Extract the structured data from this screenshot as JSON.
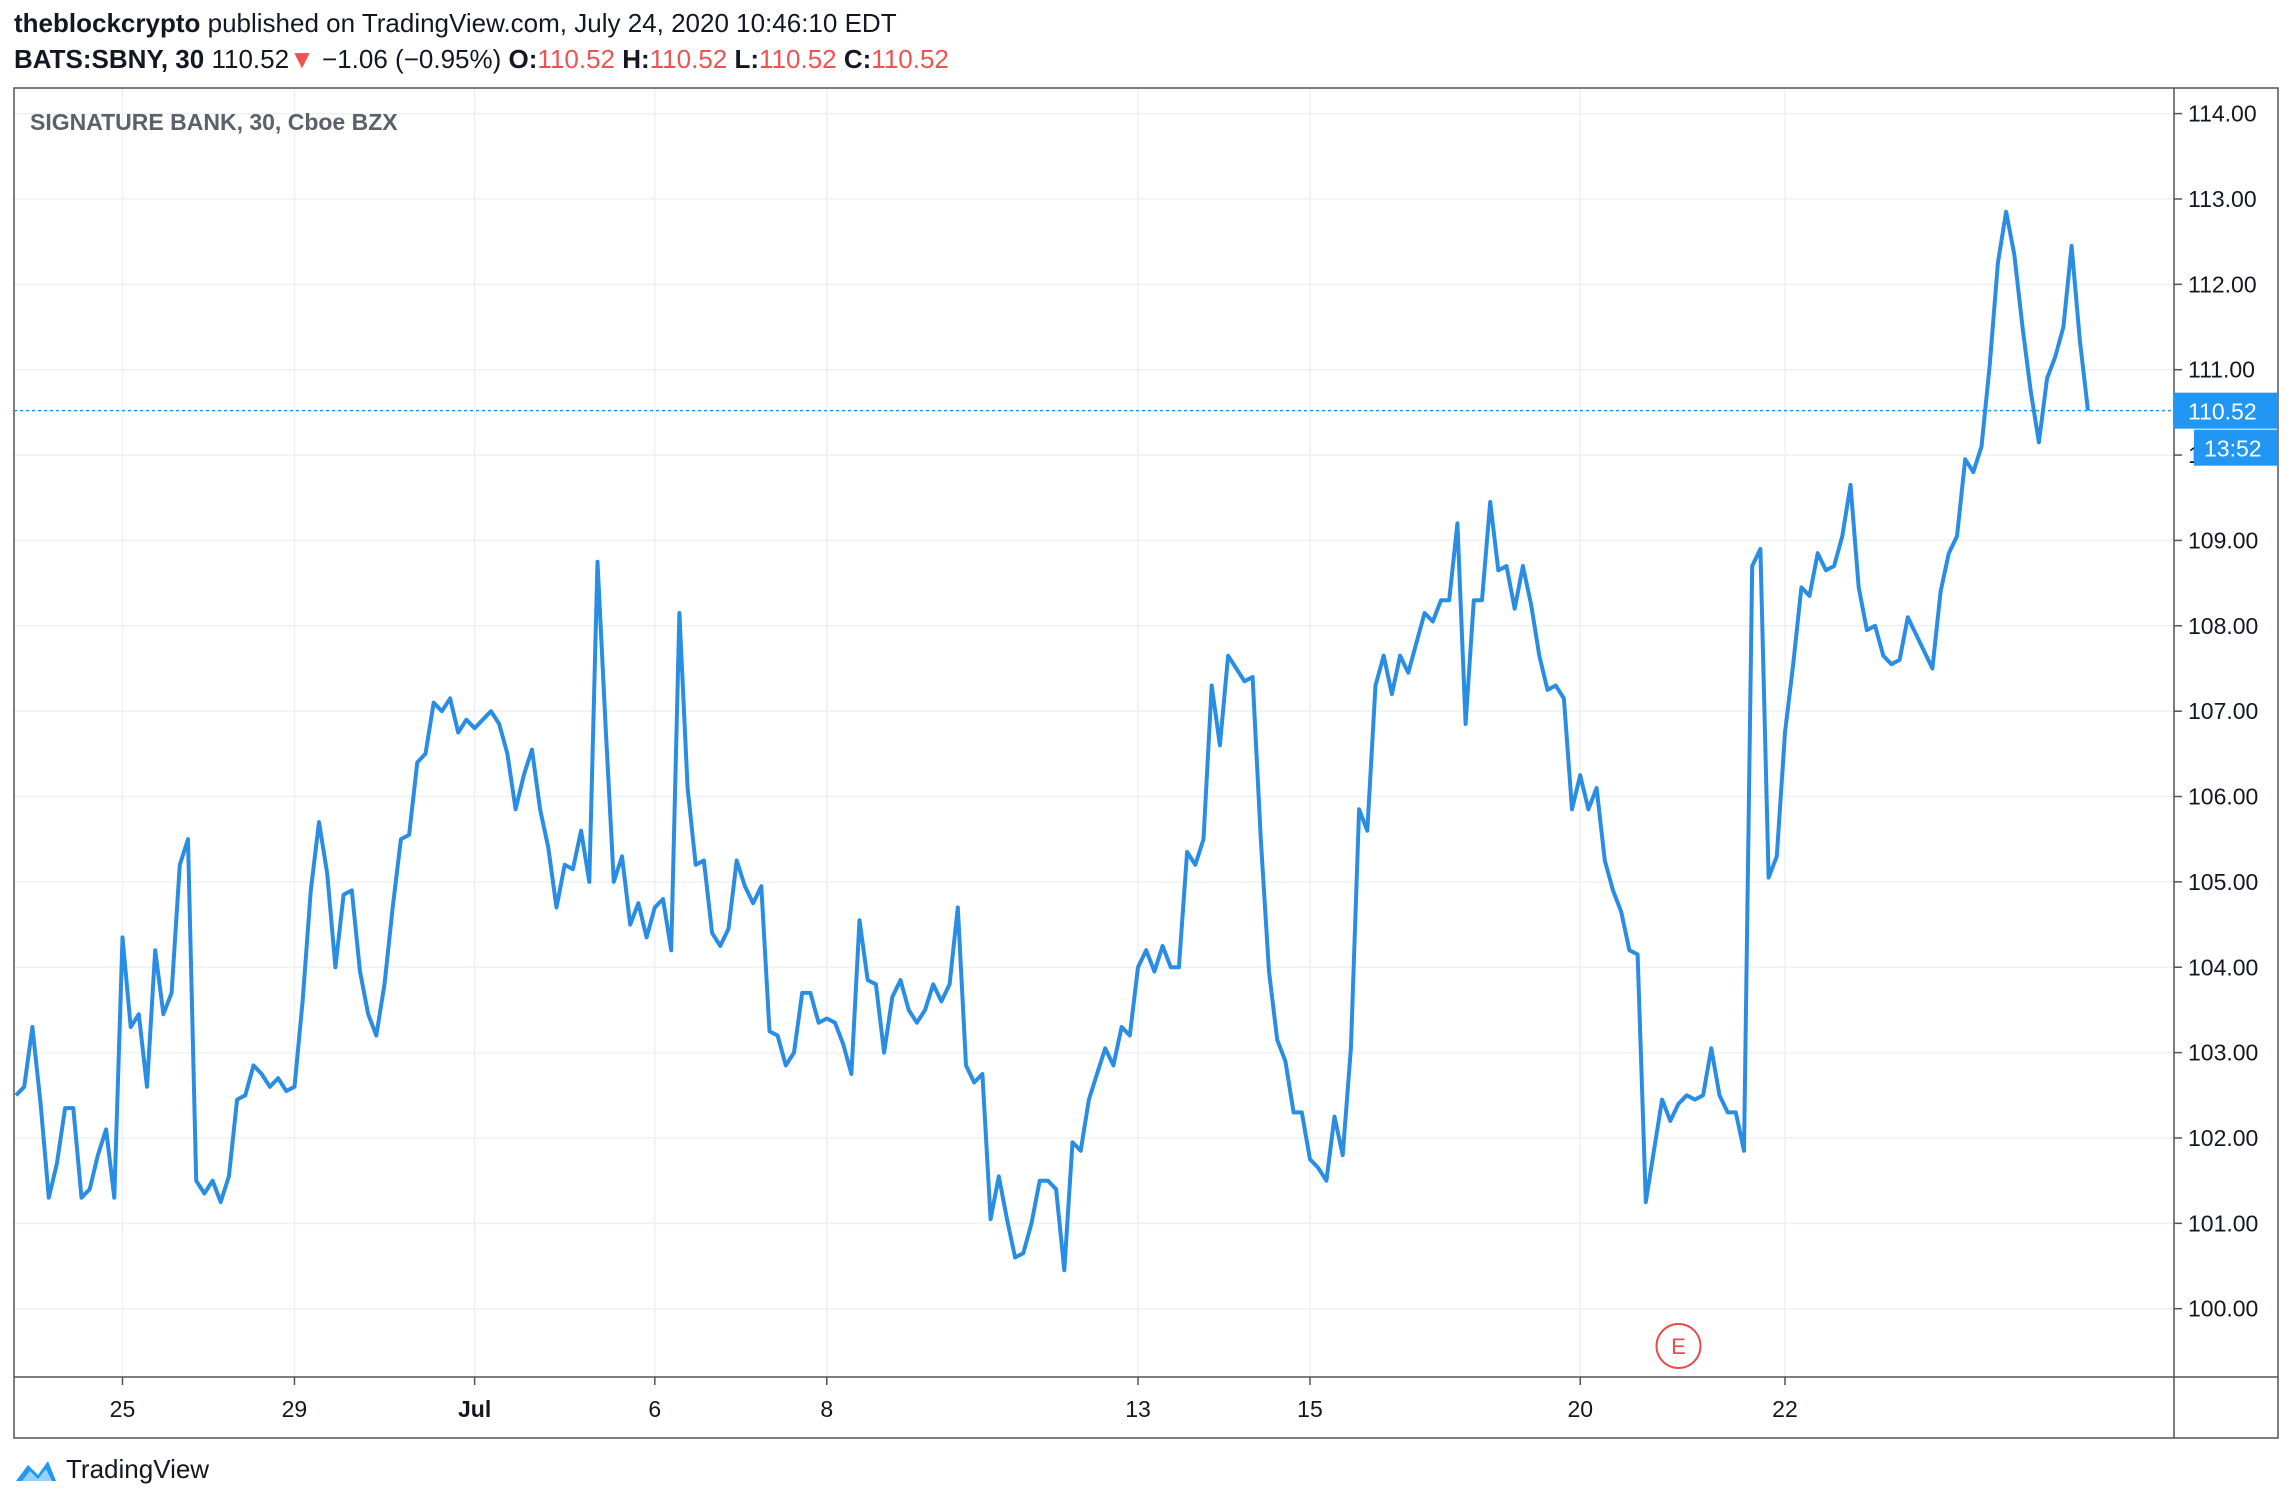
{
  "header": {
    "publisher": "theblockcrypto",
    "published_text": "published on TradingView.com, July 24, 2020 10:46:10 EDT",
    "symbol": "BATS:SBNY, 30",
    "last": "110.52",
    "change_arrow": "▼",
    "change": "−1.06 (−0.95%)",
    "o_label": "O:",
    "o_value": "110.52",
    "h_label": "H:",
    "h_value": "110.52",
    "l_label": "L:",
    "l_value": "110.52",
    "c_label": "C:",
    "c_value": "110.52"
  },
  "footer": {
    "brand": "TradingView",
    "logo_icon": "tradingview-logo-icon"
  },
  "colors": {
    "line": "#2a8de4",
    "price_tag": "#2196f3",
    "grid": "#eef0f3",
    "axis_text": "#131722",
    "earnings": "#e84c4c"
  },
  "chart_data": {
    "type": "line",
    "title": "SIGNATURE BANK, 30, Cboe BZX",
    "xlabel": "",
    "ylabel": "",
    "ylim": [
      99.2,
      114.3
    ],
    "y_ticks": [
      "100.00",
      "101.00",
      "102.00",
      "103.00",
      "104.00",
      "105.00",
      "106.00",
      "107.00",
      "108.00",
      "109.00",
      "110.00",
      "111.00",
      "112.00",
      "113.00",
      "114.00"
    ],
    "x_ticks": [
      {
        "label": "25",
        "index": 13
      },
      {
        "label": "29",
        "index": 34
      },
      {
        "label": "Jul",
        "index": 56
      },
      {
        "label": "6",
        "index": 78
      },
      {
        "label": "8",
        "index": 99
      },
      {
        "label": "13",
        "index": 137
      },
      {
        "label": "15",
        "index": 158
      },
      {
        "label": "20",
        "index": 191
      },
      {
        "label": "22",
        "index": 216
      }
    ],
    "grid": true,
    "last_price": 110.52,
    "last_price_label": "110.52",
    "countdown_label": "13:52",
    "earnings_marker": {
      "label": "E",
      "index": 203
    },
    "series": [
      {
        "name": "",
        "values": [
          102.5,
          102.6,
          103.3,
          102.4,
          101.3,
          101.7,
          102.35,
          102.35,
          101.3,
          101.4,
          101.8,
          102.1,
          101.3,
          104.35,
          103.3,
          103.45,
          102.6,
          104.2,
          103.45,
          103.7,
          105.2,
          105.5,
          101.5,
          101.35,
          101.5,
          101.25,
          101.55,
          102.45,
          102.5,
          102.85,
          102.75,
          102.6,
          102.7,
          102.55,
          102.6,
          103.6,
          104.9,
          105.7,
          105.1,
          104.0,
          104.85,
          104.9,
          103.95,
          103.45,
          103.2,
          103.8,
          104.7,
          105.5,
          105.55,
          106.4,
          106.5,
          107.1,
          107.0,
          107.15,
          106.75,
          106.9,
          106.8,
          106.9,
          107.0,
          106.85,
          106.5,
          105.85,
          106.25,
          106.55,
          105.85,
          105.4,
          104.7,
          105.2,
          105.15,
          105.6,
          105.0,
          108.75,
          106.8,
          105.0,
          105.3,
          104.5,
          104.75,
          104.35,
          104.7,
          104.8,
          104.2,
          108.15,
          106.1,
          105.2,
          105.25,
          104.4,
          104.25,
          104.45,
          105.25,
          104.95,
          104.75,
          104.95,
          103.25,
          103.2,
          102.85,
          103.0,
          103.7,
          103.7,
          103.35,
          103.4,
          103.35,
          103.1,
          102.75,
          104.55,
          103.85,
          103.8,
          103.0,
          103.65,
          103.85,
          103.5,
          103.35,
          103.5,
          103.8,
          103.6,
          103.8,
          104.7,
          102.85,
          102.65,
          102.75,
          101.05,
          101.55,
          101.05,
          100.6,
          100.65,
          101.0,
          101.5,
          101.5,
          101.4,
          100.45,
          101.95,
          101.85,
          102.45,
          102.75,
          103.05,
          102.85,
          103.3,
          103.2,
          104.0,
          104.2,
          103.95,
          104.25,
          104.0,
          104.0,
          105.35,
          105.2,
          105.5,
          107.3,
          106.6,
          107.65,
          107.5,
          107.35,
          107.4,
          105.5,
          103.95,
          103.15,
          102.9,
          102.3,
          102.3,
          101.75,
          101.65,
          101.5,
          102.25,
          101.8,
          103.05,
          105.85,
          105.6,
          107.3,
          107.65,
          107.2,
          107.65,
          107.45,
          107.8,
          108.15,
          108.05,
          108.3,
          108.3,
          109.2,
          106.85,
          108.3,
          108.3,
          109.45,
          108.65,
          108.7,
          108.2,
          108.7,
          108.25,
          107.65,
          107.25,
          107.3,
          107.15,
          105.85,
          106.25,
          105.85,
          106.1,
          105.25,
          104.9,
          104.65,
          104.2,
          104.15,
          101.25,
          101.85,
          102.45,
          102.2,
          102.4,
          102.5,
          102.45,
          102.5,
          103.05,
          102.5,
          102.3,
          102.3,
          101.85,
          108.7,
          108.9,
          105.05,
          105.3,
          106.75,
          107.55,
          108.45,
          108.35,
          108.85,
          108.65,
          108.7,
          109.05,
          109.65,
          108.45,
          107.95,
          108.0,
          107.65,
          107.55,
          107.6,
          108.1,
          107.9,
          107.7,
          107.5,
          108.4,
          108.85,
          109.05,
          109.95,
          109.8,
          110.1,
          111.05,
          112.25,
          112.85,
          112.35,
          111.5,
          110.75,
          110.15,
          110.9,
          111.15,
          111.5,
          112.45,
          111.35,
          110.52
        ]
      }
    ]
  }
}
